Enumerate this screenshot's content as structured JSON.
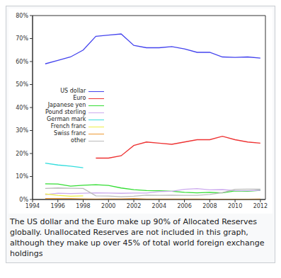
{
  "chart_data": {
    "type": "line",
    "caption": "The US dollar and the Euro make up 90% of Allocated Reserves globally. Unallocated Reserves are not included in this graph, although they make up over 45% of total world foreign exchange holdings",
    "x": [
      1995,
      1996,
      1997,
      1998,
      1999,
      2000,
      2001,
      2002,
      2003,
      2004,
      2005,
      2006,
      2007,
      2008,
      2009,
      2010,
      2011,
      2012
    ],
    "series": [
      {
        "name": "US dollar",
        "color": "#4444ee",
        "values": [
          59,
          60.5,
          62,
          65,
          71,
          71.5,
          72,
          67,
          66,
          66,
          66.5,
          65.5,
          64,
          64,
          62,
          61.8,
          62,
          61.5
        ]
      },
      {
        "name": "Euro",
        "color": "#ee3333",
        "values": [
          null,
          null,
          null,
          null,
          18,
          18,
          19,
          23.5,
          25,
          24.5,
          24,
          25,
          26,
          26,
          27.5,
          26,
          25,
          24.5
        ]
      },
      {
        "name": "Japanese yen",
        "color": "#33dd33",
        "values": [
          6.8,
          6.7,
          5.8,
          6.2,
          6.4,
          6.1,
          5,
          4.3,
          3.9,
          3.8,
          3.6,
          3.1,
          2.9,
          3.1,
          2.9,
          3.7,
          3.6,
          4
        ]
      },
      {
        "name": "Pound sterling",
        "color": "#ccaaee",
        "values": [
          2.1,
          2.7,
          2.6,
          2.7,
          2.9,
          2.8,
          2.7,
          2.8,
          2.8,
          3.4,
          3.6,
          4.4,
          4.7,
          4.2,
          4.3,
          3.9,
          3.8,
          4
        ]
      },
      {
        "name": "German mark",
        "color": "#33dddd",
        "values": [
          15.8,
          15,
          14.5,
          13.8,
          null,
          null,
          null,
          null,
          null,
          null,
          null,
          null,
          null,
          null,
          null,
          null,
          null,
          null
        ]
      },
      {
        "name": "French franc",
        "color": "#eeee44",
        "values": [
          2.4,
          1.8,
          1.4,
          1.6,
          null,
          null,
          null,
          null,
          null,
          null,
          null,
          null,
          null,
          null,
          null,
          null,
          null,
          null
        ]
      },
      {
        "name": "Swiss franc",
        "color": "#ee9933",
        "values": [
          0.4,
          0.4,
          0.4,
          0.3,
          0.2,
          0.3,
          0.3,
          0.4,
          0.2,
          0.2,
          0.2,
          0.2,
          0.2,
          0.1,
          0.1,
          0.1,
          0.1,
          0.2
        ]
      },
      {
        "name": "other",
        "color": "#bbbbbb",
        "values": [
          4.8,
          5,
          4.9,
          4.8,
          1.6,
          1.5,
          1.2,
          1.4,
          1.9,
          1.8,
          1.9,
          1.8,
          1.8,
          2.2,
          3,
          4.4,
          4.5,
          4.5
        ]
      }
    ],
    "xlim": [
      1994,
      2012.4
    ],
    "xticks": [
      1994,
      1996,
      1998,
      2000,
      2002,
      2004,
      2006,
      2008,
      2010,
      2012
    ],
    "ylim": [
      0,
      80
    ],
    "yticks": [
      {
        "value": 0,
        "label": "0%"
      },
      {
        "value": 10,
        "label": "10%"
      },
      {
        "value": 20,
        "label": "20%"
      },
      {
        "value": 30,
        "label": "30%"
      },
      {
        "value": 40,
        "label": "40%"
      },
      {
        "value": 50,
        "label": "50%"
      },
      {
        "value": 60,
        "label": "60%"
      },
      {
        "value": 70,
        "label": "70%"
      },
      {
        "value": 80,
        "label": "80%"
      }
    ],
    "grid": false,
    "legend": "left"
  }
}
